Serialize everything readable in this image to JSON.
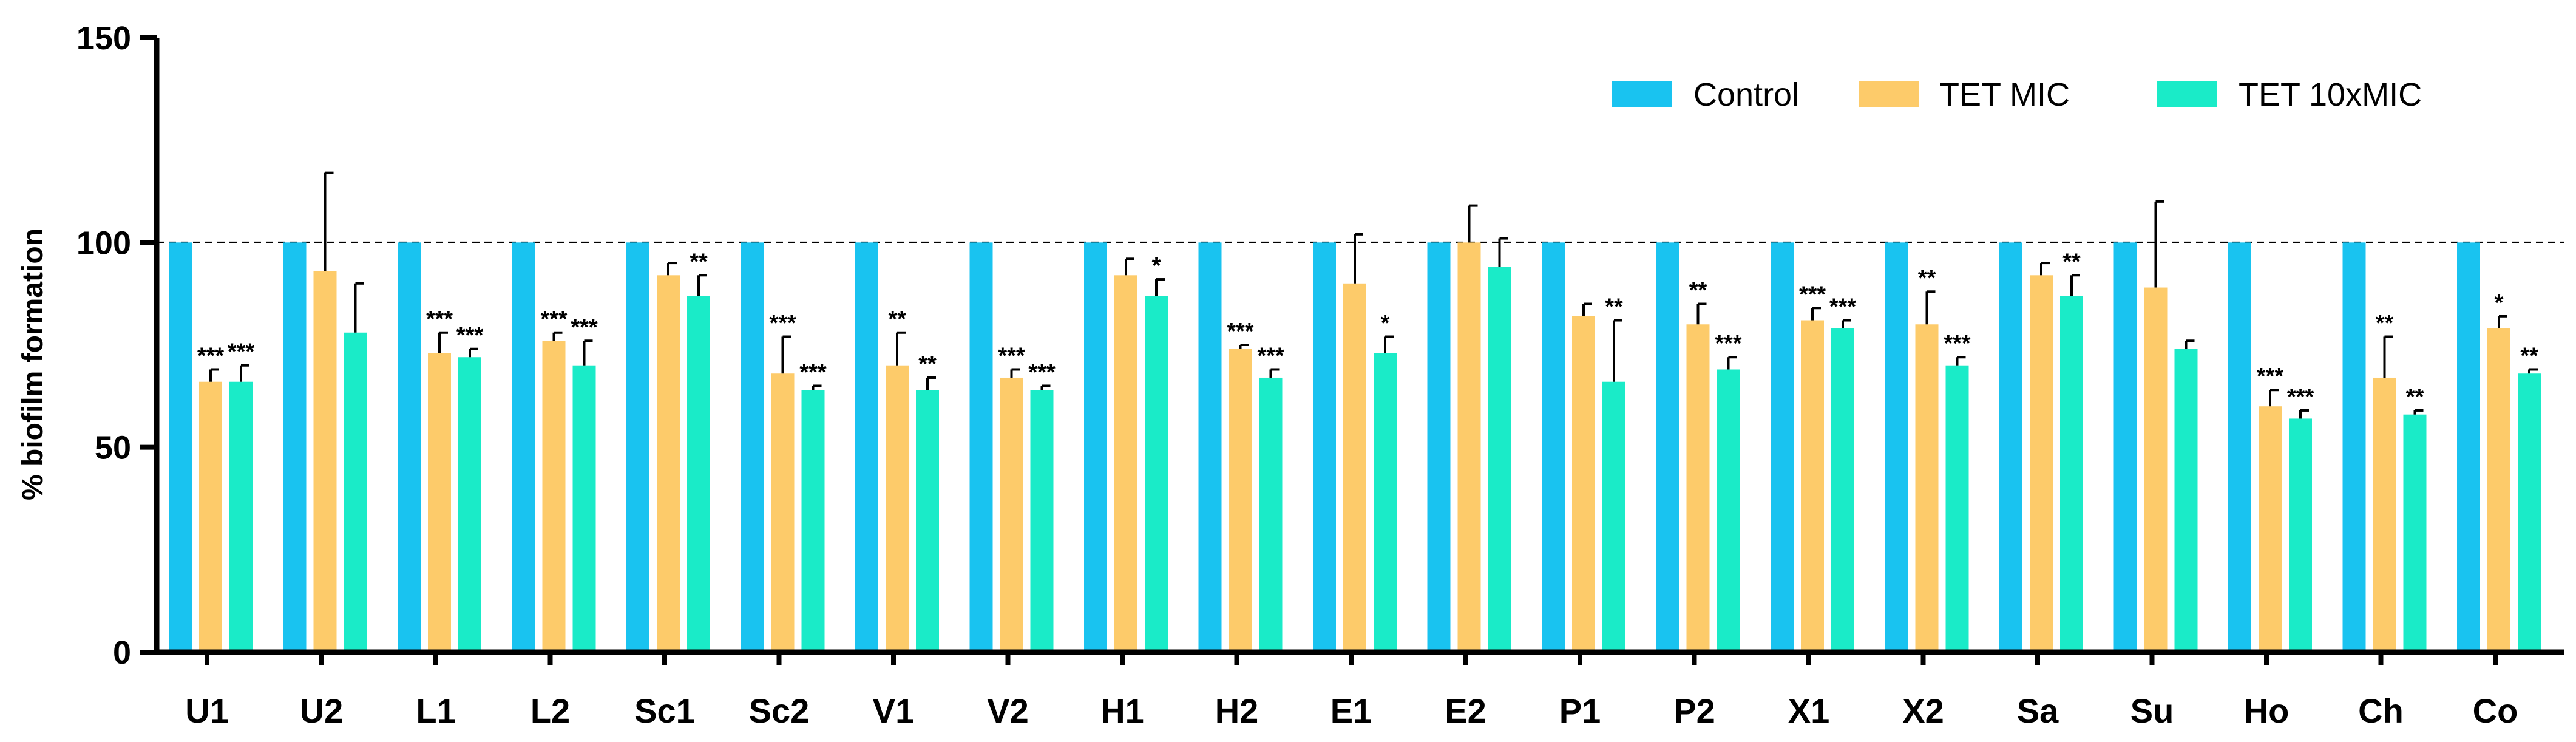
{
  "chart_data": {
    "type": "bar",
    "title": "",
    "xlabel": "",
    "ylabel": "% biofilm formation",
    "ylim": [
      0,
      150
    ],
    "yticks": [
      "0",
      "50",
      "100",
      "150"
    ],
    "reference_line": 100,
    "legend_position": "top-right",
    "categories": [
      "U1",
      "U2",
      "L1",
      "L2",
      "Sc1",
      "Sc2",
      "V1",
      "V2",
      "H1",
      "H2",
      "E1",
      "E2",
      "P1",
      "P2",
      "X1",
      "X2",
      "Sa",
      "Su",
      "Ho",
      "Ch",
      "Co"
    ],
    "series": [
      {
        "name": "Control",
        "color": "#19C3F0",
        "values": [
          100,
          100,
          100,
          100,
          100,
          100,
          100,
          100,
          100,
          100,
          100,
          100,
          100,
          100,
          100,
          100,
          100,
          100,
          100,
          100,
          100
        ],
        "errors": [
          0,
          0,
          0,
          0,
          0,
          0,
          0,
          0,
          0,
          0,
          0,
          0,
          0,
          0,
          0,
          0,
          0,
          0,
          0,
          0,
          0
        ],
        "significance": [
          "",
          "",
          "",
          "",
          "",
          "",
          "",
          "",
          "",
          "",
          "",
          "",
          "",
          "",
          "",
          "",
          "",
          "",
          "",
          "",
          ""
        ]
      },
      {
        "name": "TET MIC",
        "color": "#FDCB6A",
        "values": [
          66,
          93,
          73,
          76,
          92,
          68,
          70,
          67,
          92,
          74,
          90,
          100,
          82,
          80,
          81,
          80,
          92,
          89,
          60,
          67,
          79
        ],
        "errors": [
          3,
          24,
          5,
          2,
          3,
          9,
          8,
          2,
          4,
          1,
          12,
          9,
          3,
          5,
          3,
          8,
          3,
          21,
          4,
          10,
          3
        ],
        "significance": [
          "***",
          "",
          "***",
          "***",
          "",
          "***",
          "**",
          "***",
          "",
          "***",
          "",
          "",
          "",
          "**",
          "***",
          "**",
          "",
          "",
          "***",
          "**",
          "*"
        ]
      },
      {
        "name": "TET 10xMIC",
        "color": "#1AEBC8",
        "values": [
          66,
          78,
          72,
          70,
          87,
          64,
          64,
          64,
          87,
          67,
          73,
          94,
          66,
          69,
          79,
          70,
          87,
          74,
          57,
          58,
          68
        ],
        "errors": [
          4,
          12,
          2,
          6,
          5,
          1,
          3,
          1,
          4,
          2,
          4,
          7,
          15,
          3,
          2,
          2,
          5,
          2,
          2,
          1,
          1
        ],
        "significance": [
          "***",
          "",
          "***",
          "***",
          "**",
          "***",
          "**",
          "***",
          "*",
          "***",
          "*",
          "",
          "**",
          "***",
          "***",
          "***",
          "**",
          "",
          "***",
          "**",
          "**"
        ]
      }
    ]
  }
}
